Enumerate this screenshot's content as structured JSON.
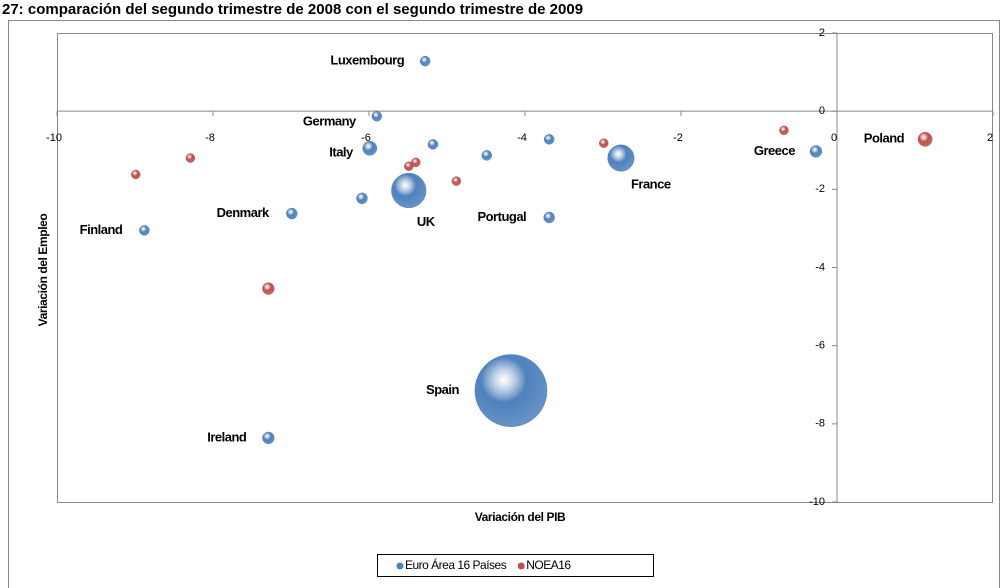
{
  "chart_data": {
    "type": "bubble",
    "title": "27: comparación del segundo trimestre de 2008 con el segundo trimestre de 2009",
    "x_label": "Variación del PIB",
    "y_label": "Variación del Empleo",
    "xlim": [
      -10,
      2
    ],
    "xticks": [
      -10,
      -8,
      -6,
      -4,
      -2,
      0,
      2
    ],
    "ylim": [
      -10,
      2
    ],
    "yticks": [
      -10,
      -8,
      -6,
      -4,
      -2,
      0,
      2
    ],
    "legend": "bottom",
    "series": [
      {
        "name": "Euro Área 16 Países",
        "color": "#4f81bd",
        "x": [
          -5.28,
          -5.9,
          -5.99,
          -5.18,
          -4.49,
          -3.69,
          -2.77,
          -0.27,
          -6.99,
          -6.09,
          -3.69,
          -8.88,
          -4.18,
          -7.29,
          -5.49
        ],
        "values": [
          1.28,
          -0.13,
          -0.95,
          -0.85,
          -1.13,
          -0.72,
          -1.2,
          -1.03,
          -2.62,
          -2.23,
          -2.72,
          -3.05,
          -7.15,
          -8.36,
          -2.03
        ],
        "sizes": [
          1,
          1,
          2,
          1,
          1,
          1,
          7,
          1.4,
          1.2,
          1.2,
          1.2,
          1,
          52,
          1.4,
          12
        ],
        "labels": [
          "Luxembourg",
          "Germany",
          "Italy",
          null,
          null,
          null,
          "France",
          "Greece",
          "Denmark",
          null,
          "Portugal",
          "Finland",
          "Spain",
          "Ireland",
          "UK"
        ]
      },
      {
        "name": "NOEA16",
        "color": "#c0504d",
        "x": [
          -8.99,
          -8.29,
          -7.29,
          -5.49,
          -5.4,
          -4.88,
          -2.99,
          -0.68,
          1.13
        ],
        "values": [
          -1.62,
          -1.2,
          -4.54,
          -1.41,
          -1.31,
          -1.79,
          -0.82,
          -0.49,
          -0.72
        ],
        "sizes": [
          0.8,
          0.8,
          1.4,
          0.8,
          0.8,
          0.8,
          0.8,
          0.8,
          2
        ],
        "labels": [
          null,
          null,
          null,
          null,
          null,
          null,
          null,
          null,
          "Poland"
        ]
      }
    ]
  }
}
